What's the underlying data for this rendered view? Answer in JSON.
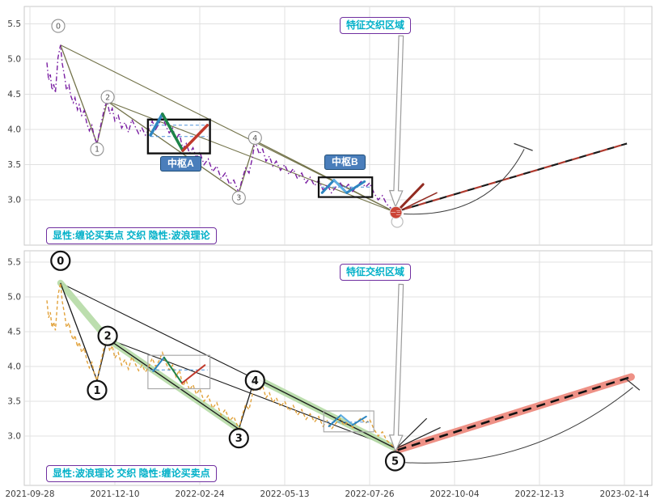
{
  "chart_data": {
    "type": "line",
    "grid": true,
    "x_axis": {
      "tick_labels": [
        "2021-09-28",
        "2021-12-10",
        "2022-02-24",
        "2022-05-13",
        "2022-07-26",
        "2022-10-04",
        "2022-12-13",
        "2023-02-14"
      ],
      "note": "evenly spaced date ticks; series x unit = tick interval index"
    },
    "y_axis": {
      "ticks": [
        3.0,
        3.5,
        4.0,
        4.5,
        5.0,
        5.5
      ],
      "range": [
        2.55,
        5.72
      ]
    },
    "price_series": [
      [
        0.2,
        4.95
      ],
      [
        0.22,
        4.7
      ],
      [
        0.24,
        4.78
      ],
      [
        0.26,
        4.56
      ],
      [
        0.28,
        4.64
      ],
      [
        0.3,
        4.52
      ],
      [
        0.33,
        5.02
      ],
      [
        0.36,
        5.2
      ],
      [
        0.38,
        4.94
      ],
      [
        0.41,
        4.74
      ],
      [
        0.43,
        4.56
      ],
      [
        0.46,
        4.63
      ],
      [
        0.48,
        4.48
      ],
      [
        0.51,
        4.38
      ],
      [
        0.53,
        4.45
      ],
      [
        0.56,
        4.28
      ],
      [
        0.58,
        4.35
      ],
      [
        0.61,
        4.2
      ],
      [
        0.64,
        4.27
      ],
      [
        0.67,
        4.08
      ],
      [
        0.7,
        3.98
      ],
      [
        0.73,
        4.06
      ],
      [
        0.76,
        3.88
      ],
      [
        0.79,
        3.8
      ],
      [
        0.82,
        3.98
      ],
      [
        0.85,
        4.15
      ],
      [
        0.88,
        4.32
      ],
      [
        0.91,
        4.4
      ],
      [
        0.94,
        4.22
      ],
      [
        0.97,
        4.3
      ],
      [
        1.0,
        4.12
      ],
      [
        1.04,
        4.2
      ],
      [
        1.08,
        4.02
      ],
      [
        1.12,
        4.1
      ],
      [
        1.16,
        3.96
      ],
      [
        1.2,
        4.14
      ],
      [
        1.24,
        4.04
      ],
      [
        1.28,
        3.94
      ],
      [
        1.32,
        4.02
      ],
      [
        1.36,
        3.92
      ],
      [
        1.4,
        4.0
      ],
      [
        1.44,
        4.12
      ],
      [
        1.48,
        4.0
      ],
      [
        1.52,
        4.08
      ],
      [
        1.56,
        4.2
      ],
      [
        1.6,
        4.05
      ],
      [
        1.64,
        3.95
      ],
      [
        1.68,
        4.02
      ],
      [
        1.72,
        3.85
      ],
      [
        1.76,
        3.95
      ],
      [
        1.8,
        3.72
      ],
      [
        1.84,
        3.8
      ],
      [
        1.88,
        3.66
      ],
      [
        1.92,
        3.74
      ],
      [
        1.96,
        3.6
      ],
      [
        2.0,
        3.68
      ],
      [
        2.05,
        3.5
      ],
      [
        2.1,
        3.58
      ],
      [
        2.15,
        3.4
      ],
      [
        2.2,
        3.48
      ],
      [
        2.25,
        3.3
      ],
      [
        2.3,
        3.38
      ],
      [
        2.35,
        3.22
      ],
      [
        2.4,
        3.28
      ],
      [
        2.46,
        3.1
      ],
      [
        2.5,
        3.3
      ],
      [
        2.54,
        3.45
      ],
      [
        2.58,
        3.38
      ],
      [
        2.62,
        3.6
      ],
      [
        2.65,
        3.84
      ],
      [
        2.7,
        3.65
      ],
      [
        2.74,
        3.72
      ],
      [
        2.78,
        3.55
      ],
      [
        2.82,
        3.62
      ],
      [
        2.86,
        3.48
      ],
      [
        2.9,
        3.55
      ],
      [
        2.95,
        3.42
      ],
      [
        3.0,
        3.5
      ],
      [
        3.05,
        3.36
      ],
      [
        3.1,
        3.44
      ],
      [
        3.15,
        3.3
      ],
      [
        3.2,
        3.38
      ],
      [
        3.25,
        3.24
      ],
      [
        3.3,
        3.32
      ],
      [
        3.35,
        3.2
      ],
      [
        3.4,
        3.28
      ],
      [
        3.45,
        3.14
      ],
      [
        3.5,
        3.22
      ],
      [
        3.55,
        3.1
      ],
      [
        3.6,
        3.18
      ],
      [
        3.65,
        3.25
      ],
      [
        3.7,
        3.15
      ],
      [
        3.75,
        3.22
      ],
      [
        3.8,
        3.12
      ],
      [
        3.85,
        3.2
      ],
      [
        3.9,
        3.26
      ],
      [
        3.95,
        3.18
      ],
      [
        4.0,
        3.24
      ],
      [
        4.05,
        3.1
      ],
      [
        4.1,
        3.0
      ],
      [
        4.15,
        3.06
      ],
      [
        4.2,
        2.94
      ],
      [
        4.25,
        2.88
      ],
      [
        4.31,
        2.82
      ]
    ],
    "wave_anchors": {
      "0": [
        0.36,
        5.2
      ],
      "1": [
        0.79,
        3.8
      ],
      "2": [
        0.91,
        4.4
      ],
      "3": [
        2.46,
        3.1
      ],
      "4": [
        2.65,
        3.84
      ],
      "5": [
        4.31,
        2.82
      ]
    },
    "panels": [
      {
        "name": "top",
        "caption": "显性:缠论买卖点 交织 隐性:波浪理论",
        "region_label": "特征交织区域",
        "price_color": "#7a1fa2",
        "price_dash": "6 3 1.5 3",
        "trend_color": "#73734a",
        "trend_path": [
          "0",
          "1",
          "2",
          "3",
          "4",
          "5"
        ],
        "wedge_lines": [
          [
            "0",
            "5"
          ],
          [
            "2",
            "5"
          ]
        ],
        "pivots": [
          {
            "label": "中枢A",
            "t_start": 1.39,
            "t_end": 2.12,
            "low": 3.66,
            "high": 4.14,
            "box_color": "#111111",
            "box_width": 2.4,
            "levels": [
              3.9,
              4.06
            ],
            "zigzag": [
              {
                "pts": [
                  [
                    1.42,
                    3.92
                  ],
                  [
                    1.56,
                    4.22
                  ]
                ],
                "color": "#2e86c1",
                "width": 3.5
              },
              {
                "pts": [
                  [
                    1.56,
                    4.22
                  ],
                  [
                    1.8,
                    3.7
                  ]
                ],
                "color": "#1e8449",
                "width": 3.5
              },
              {
                "pts": [
                  [
                    1.8,
                    3.7
                  ],
                  [
                    2.09,
                    4.06
                  ]
                ],
                "color": "#c0392b",
                "width": 3.5
              }
            ]
          },
          {
            "label": "中枢B",
            "t_start": 3.4,
            "t_end": 4.03,
            "low": 3.04,
            "high": 3.32,
            "box_color": "#111111",
            "box_width": 2.2,
            "levels": [
              3.18
            ],
            "zigzag": [
              {
                "pts": [
                  [
                    3.44,
                    3.1
                  ],
                  [
                    3.58,
                    3.28
                  ]
                ],
                "color": "#2e86c1",
                "width": 3
              },
              {
                "pts": [
                  [
                    3.58,
                    3.28
                  ],
                  [
                    3.73,
                    3.1
                  ]
                ],
                "color": "#5dade2",
                "width": 3
              },
              {
                "pts": [
                  [
                    3.73,
                    3.1
                  ],
                  [
                    3.94,
                    3.26
                  ]
                ],
                "color": "#2e86c1",
                "width": 3
              }
            ]
          }
        ],
        "projection": {
          "from": [
            4.33,
            2.84
          ],
          "to": [
            7.03,
            3.8
          ],
          "colors": [
            "#1a1a1a",
            "#b03a2e"
          ]
        },
        "fan": [
          {
            "pts": [
              [
                4.31,
                2.82
              ],
              [
                4.63,
                3.22
              ]
            ],
            "color": "#922b21",
            "width": 3
          },
          {
            "pts": [
              [
                4.31,
                2.82
              ],
              [
                4.79,
                3.1
              ]
            ],
            "color": "#922b21",
            "width": 1.5
          }
        ],
        "arc": {
          "from": [
            4.4,
            2.8
          ],
          "ctrl": [
            5.4,
            2.74
          ],
          "to": [
            5.82,
            3.72
          ],
          "tick": [
            [
              5.7,
              3.8
            ],
            [
              5.92,
              3.7
            ]
          ]
        },
        "arrow": {
          "tail": [
            4.37,
            5.33
          ],
          "tip": [
            4.305,
            2.9
          ]
        },
        "wave_labels": [
          {
            "text": "0",
            "t": 0.333,
            "p": 5.47
          },
          {
            "text": "1",
            "t": 0.79,
            "p": 3.72
          },
          {
            "text": "2",
            "t": 0.915,
            "p": 4.46
          },
          {
            "text": "3",
            "t": 2.46,
            "p": 3.03
          },
          {
            "text": "4",
            "t": 2.65,
            "p": 3.88
          }
        ],
        "label_style": {
          "r": 8,
          "stroke": "#8f8f8f",
          "width": 1.1,
          "font": 9.5,
          "text_color": "#555555",
          "bold": false
        },
        "ghost_circle": {
          "t": 4.325,
          "p": 2.69
        },
        "badge": {
          "text": "一三",
          "t": 4.31,
          "p": 2.82,
          "fill": "#cb4335"
        }
      },
      {
        "name": "bottom",
        "caption": "显性:波浪理论 交织 隐性:缠论买卖点",
        "region_label": "特征交织区域",
        "price_color": "#e2a23b",
        "price_dash": "4 3",
        "trend_color": "#1a1a1a",
        "trend_path": [
          "0",
          "1",
          "2",
          "3",
          "4",
          "5"
        ],
        "wedge_lines": [
          [
            "0",
            "5"
          ],
          [
            "2",
            "5"
          ]
        ],
        "impulse_band": {
          "segments": [
            [
              "0",
              "2"
            ],
            [
              "2",
              "3"
            ],
            [
              "4",
              "5"
            ]
          ],
          "color": "#b8dcaa",
          "width": 8
        },
        "pivots": [
          {
            "t_start": 1.39,
            "t_end": 2.12,
            "low": 3.68,
            "high": 4.16,
            "box_color": "#a9a9a9",
            "box_width": 1.2,
            "levels": [
              3.95
            ],
            "zigzag": [
              {
                "pts": [
                  [
                    1.45,
                    3.93
                  ],
                  [
                    1.58,
                    4.13
                  ]
                ],
                "color": "#2e86c1",
                "width": 2
              },
              {
                "pts": [
                  [
                    1.58,
                    4.13
                  ],
                  [
                    1.79,
                    3.76
                  ]
                ],
                "color": "#1e8449",
                "width": 2
              },
              {
                "pts": [
                  [
                    1.79,
                    3.76
                  ],
                  [
                    2.06,
                    4.02
                  ]
                ],
                "color": "#c0392b",
                "width": 2
              }
            ]
          },
          {
            "t_start": 3.46,
            "t_end": 4.05,
            "low": 3.06,
            "high": 3.36,
            "box_color": "#a9a9a9",
            "box_width": 1.2,
            "levels": [
              3.2
            ],
            "zigzag": [
              {
                "pts": [
                  [
                    3.52,
                    3.14
                  ],
                  [
                    3.66,
                    3.3
                  ]
                ],
                "color": "#2e86c1",
                "width": 2
              },
              {
                "pts": [
                  [
                    3.66,
                    3.3
                  ],
                  [
                    3.8,
                    3.16
                  ]
                ],
                "color": "#5dade2",
                "width": 2
              },
              {
                "pts": [
                  [
                    3.8,
                    3.16
                  ],
                  [
                    3.96,
                    3.28
                  ]
                ],
                "color": "#2e86c1",
                "width": 2
              }
            ]
          }
        ],
        "projection_band": {
          "from": [
            4.33,
            2.8
          ],
          "to": [
            7.08,
            3.85
          ],
          "band_color": "#ee9186",
          "band_width": 9,
          "dash_color": "#111111",
          "dash_width": 2.6,
          "dash": "11 7"
        },
        "fan": [
          {
            "pts": [
              [
                4.31,
                2.82
              ],
              [
                4.67,
                3.25
              ]
            ],
            "color": "#222222",
            "width": 1.2
          },
          {
            "pts": [
              [
                4.31,
                2.82
              ],
              [
                4.83,
                3.12
              ]
            ],
            "color": "#222222",
            "width": 1.2
          }
        ],
        "arc": {
          "from": [
            4.42,
            2.62
          ],
          "ctrl": [
            5.9,
            2.52
          ],
          "to": [
            7.1,
            3.7
          ],
          "tick": [
            [
              7.02,
              3.82
            ],
            [
              7.18,
              3.66
            ]
          ]
        },
        "arrow": {
          "tail": [
            4.37,
            5.18
          ],
          "tip": [
            4.305,
            2.78
          ]
        },
        "wave_labels": [
          {
            "text": "0",
            "t": 0.36,
            "p": 5.52
          },
          {
            "text": "1",
            "t": 0.79,
            "p": 3.66
          },
          {
            "text": "2",
            "t": 0.915,
            "p": 4.44
          },
          {
            "text": "3",
            "t": 2.46,
            "p": 2.97
          },
          {
            "text": "4",
            "t": 2.65,
            "p": 3.8
          },
          {
            "text": "5",
            "t": 4.3,
            "p": 2.64
          }
        ],
        "label_style": {
          "r": 11.5,
          "stroke": "#141414",
          "width": 2.2,
          "font": 13,
          "text_color": "#111111",
          "bold": true
        }
      }
    ]
  }
}
